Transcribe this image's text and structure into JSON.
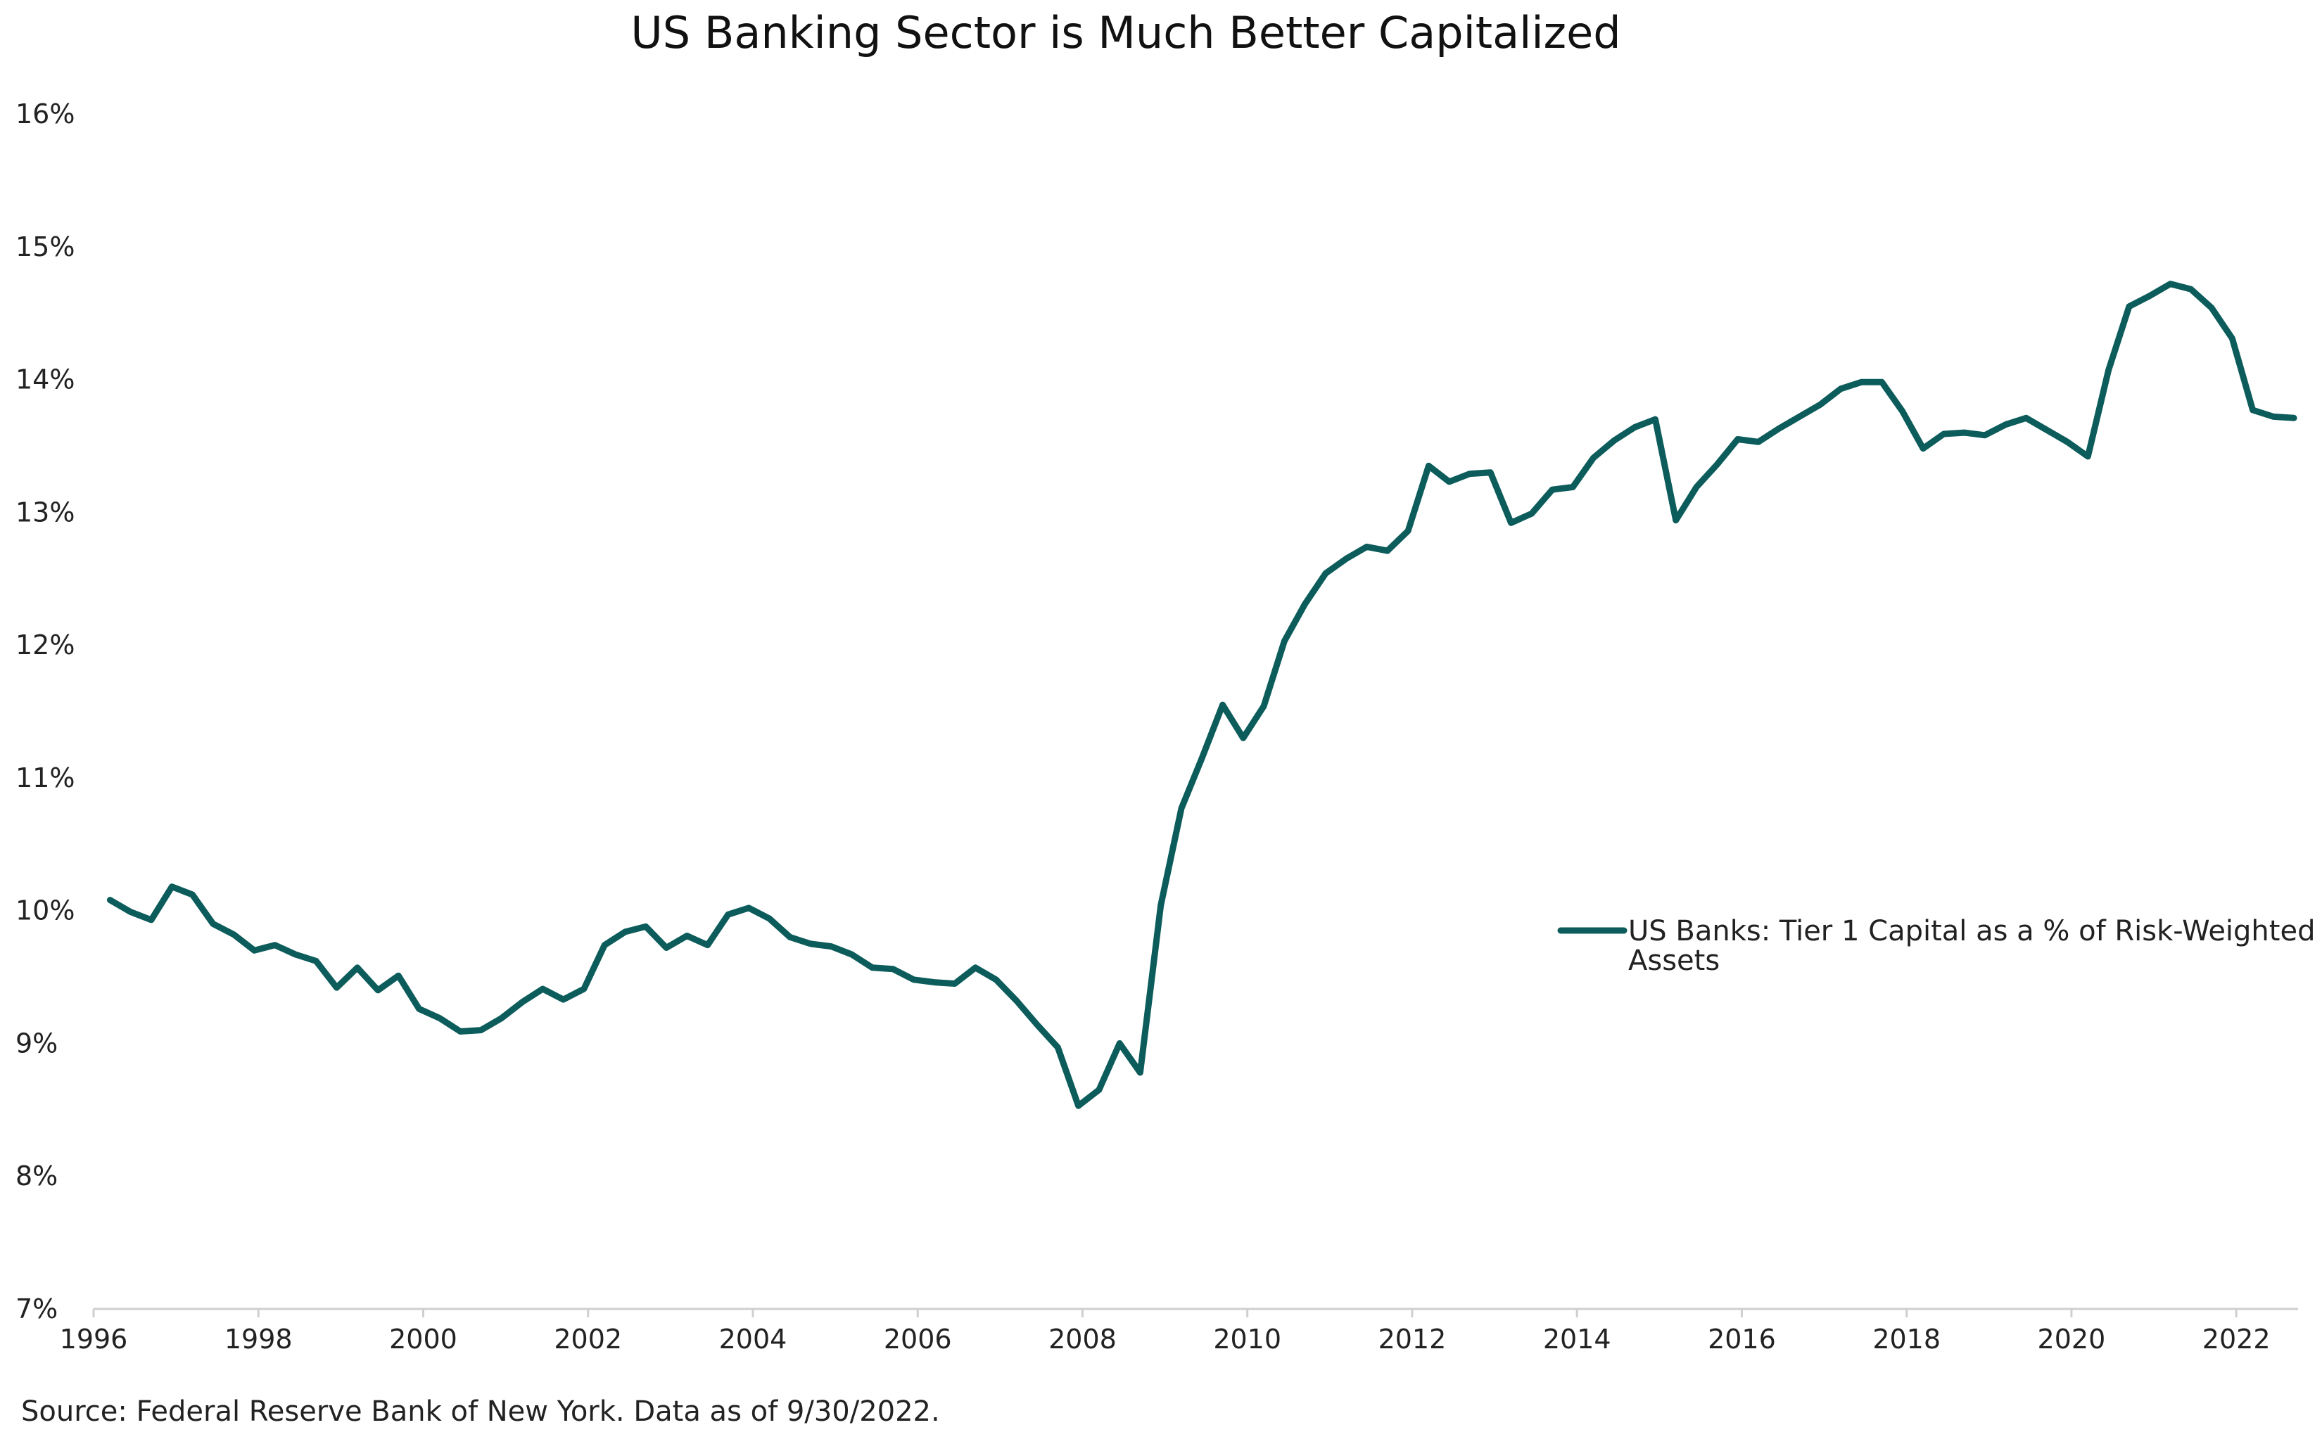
{
  "chart_data": {
    "type": "line",
    "title": "US Banking Sector is Much Better Capitalized",
    "xlabel": "",
    "ylabel": "",
    "xlim": [
      1996,
      2022.75
    ],
    "ylim": [
      7,
      16
    ],
    "x_ticks": [
      1996,
      1998,
      2000,
      2002,
      2004,
      2006,
      2008,
      2010,
      2012,
      2014,
      2016,
      2018,
      2020,
      2022
    ],
    "x_tick_labels": [
      "1996",
      "1998",
      "2000",
      "2002",
      "2004",
      "2006",
      "2008",
      "2010",
      "2012",
      "2014",
      "2016",
      "2018",
      "2020",
      "2022"
    ],
    "y_ticks": [
      7,
      8,
      9,
      10,
      11,
      12,
      13,
      14,
      15,
      16
    ],
    "y_tick_labels": [
      "7%",
      "8%",
      "9%",
      "10%",
      "11%",
      "12%",
      "13%",
      "14%",
      "15%",
      "16%"
    ],
    "grid": false,
    "legend_position": "right",
    "source": "Source: Federal Reserve Bank of New York. Data as of 9/30/2022.",
    "series": [
      {
        "name": "US Banks: Tier 1 Capital as a % of Risk-Weighted Assets",
        "legend_lines": [
          "US Banks: Tier 1 Capital as a % of Risk-Weighted",
          "Assets"
        ],
        "color": "#0d5c5c",
        "x": [
          1996.2,
          1996.45,
          1996.7,
          1996.95,
          1997.2,
          1997.45,
          1997.7,
          1997.95,
          1998.2,
          1998.45,
          1998.7,
          1998.95,
          1999.2,
          1999.45,
          1999.7,
          1999.95,
          2000.2,
          2000.45,
          2000.7,
          2000.95,
          2001.2,
          2001.45,
          2001.7,
          2001.95,
          2002.2,
          2002.45,
          2002.7,
          2002.95,
          2003.2,
          2003.45,
          2003.7,
          2003.95,
          2004.2,
          2004.45,
          2004.7,
          2004.95,
          2005.2,
          2005.45,
          2005.7,
          2005.95,
          2006.2,
          2006.45,
          2006.7,
          2006.95,
          2007.2,
          2007.45,
          2007.7,
          2007.95,
          2008.2,
          2008.45,
          2008.7,
          2008.95,
          2009.2,
          2009.45,
          2009.7,
          2009.95,
          2010.2,
          2010.45,
          2010.7,
          2010.95,
          2011.2,
          2011.45,
          2011.7,
          2011.95,
          2012.2,
          2012.45,
          2012.7,
          2012.95,
          2013.2,
          2013.45,
          2013.7,
          2013.95,
          2014.2,
          2014.45,
          2014.7,
          2014.95,
          2015.2,
          2015.45,
          2015.7,
          2015.95,
          2016.2,
          2016.45,
          2016.7,
          2016.95,
          2017.2,
          2017.45,
          2017.7,
          2017.95,
          2018.2,
          2018.45,
          2018.7,
          2018.95,
          2019.2,
          2019.45,
          2019.7,
          2019.95,
          2020.2,
          2020.45,
          2020.7,
          2020.95,
          2021.2,
          2021.45,
          2021.7,
          2021.95,
          2022.2,
          2022.45,
          2022.7
        ],
        "y": [
          10.08,
          9.99,
          9.93,
          10.18,
          10.12,
          9.9,
          9.82,
          9.7,
          9.74,
          9.67,
          9.62,
          9.42,
          9.57,
          9.4,
          9.51,
          9.26,
          9.19,
          9.09,
          9.1,
          9.19,
          9.31,
          9.41,
          9.33,
          9.41,
          9.74,
          9.84,
          9.88,
          9.72,
          9.81,
          9.74,
          9.97,
          10.02,
          9.94,
          9.8,
          9.75,
          9.73,
          9.67,
          9.57,
          9.56,
          9.48,
          9.46,
          9.45,
          9.57,
          9.48,
          9.32,
          9.14,
          8.97,
          8.53,
          8.65,
          9.0,
          8.78,
          10.04,
          10.77,
          11.15,
          11.55,
          11.3,
          11.54,
          12.03,
          12.31,
          12.54,
          12.65,
          12.74,
          12.71,
          12.86,
          13.35,
          13.23,
          13.29,
          13.3,
          12.92,
          12.99,
          13.17,
          13.19,
          13.41,
          13.54,
          13.64,
          13.7,
          12.94,
          13.19,
          13.36,
          13.55,
          13.53,
          13.63,
          13.72,
          13.81,
          13.93,
          13.98,
          13.98,
          13.76,
          13.48,
          13.59,
          13.6,
          13.58,
          13.66,
          13.71,
          13.62,
          13.53,
          13.42,
          14.07,
          14.55,
          14.63,
          14.72,
          14.68,
          14.54,
          14.31,
          13.77,
          13.72,
          13.71
        ]
      }
    ]
  }
}
